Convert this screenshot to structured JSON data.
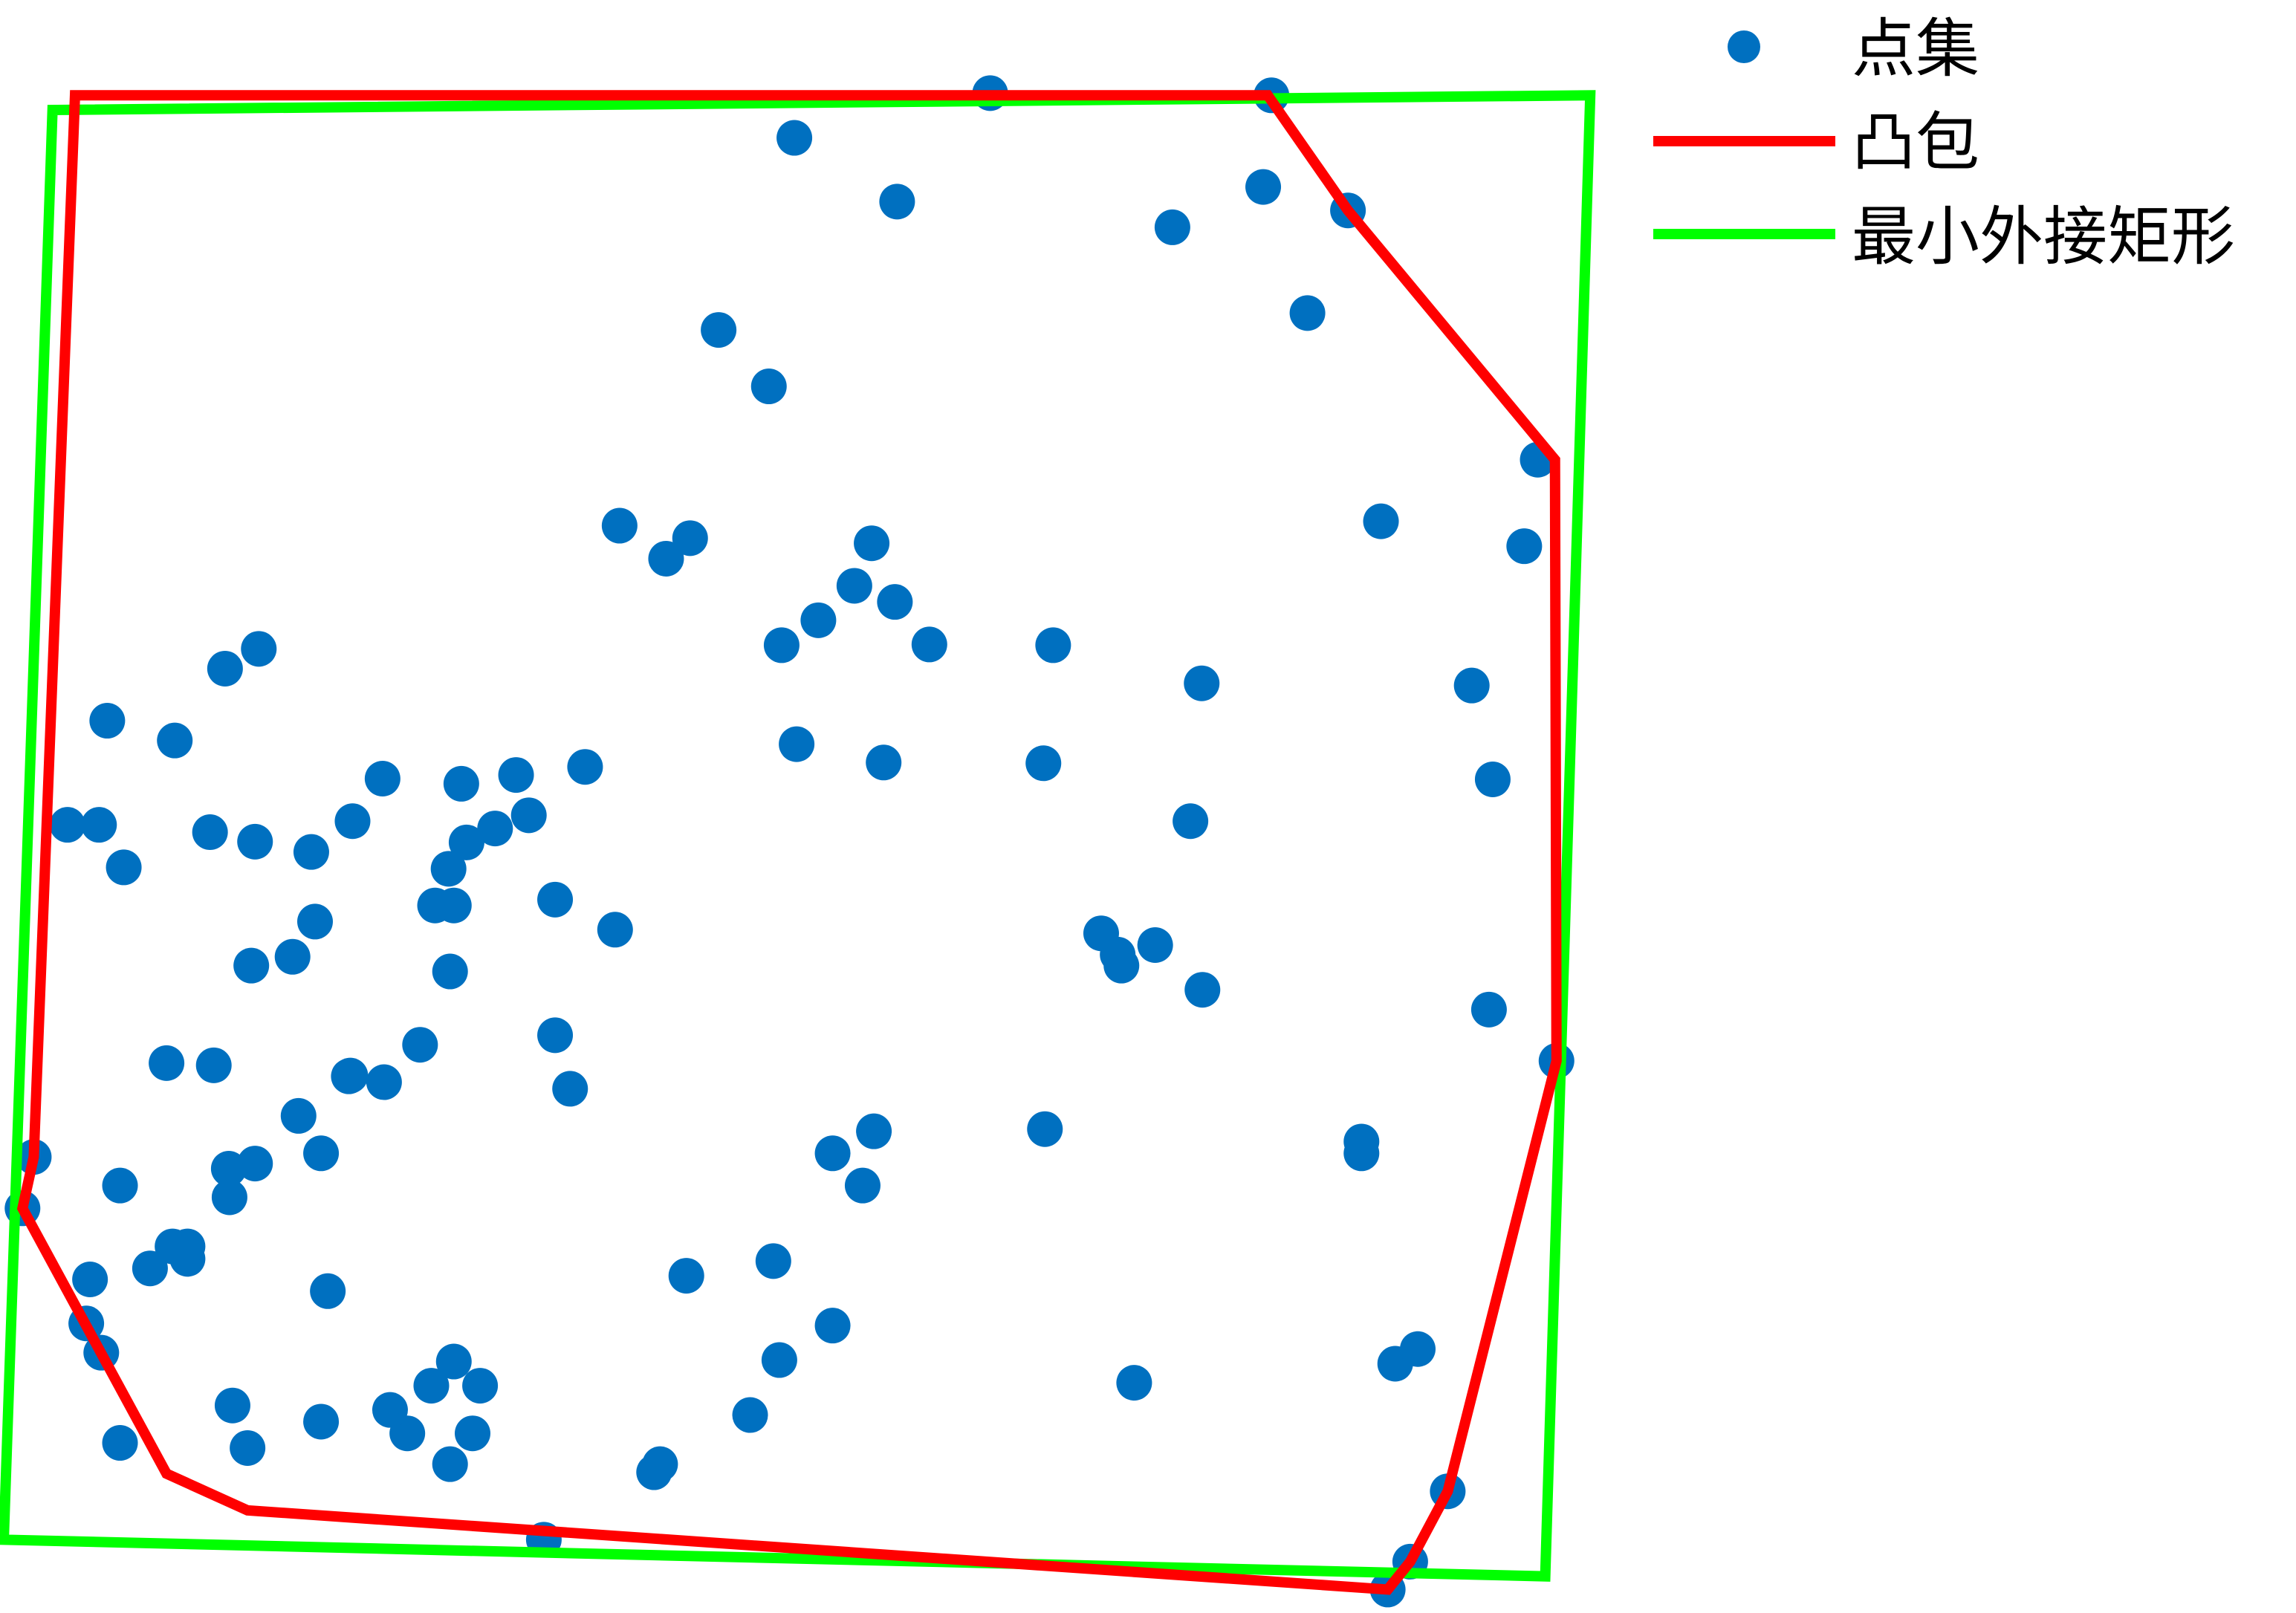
{
  "chart_data": {
    "type": "scatter",
    "title": "",
    "xlabel": "",
    "ylabel": "",
    "xlim": [
      0,
      2100
    ],
    "ylim": [
      0,
      2200
    ],
    "grid": false,
    "legend_position": "top-right",
    "colors": {
      "points": "#0070C0",
      "hull": "#FF0000",
      "rect": "#00FF00"
    },
    "legend": {
      "points_label": "点集",
      "hull_label": "凸包",
      "rect_label": "最小外接矩形"
    },
    "series": [
      {
        "name": "点集",
        "type": "scatter",
        "points": [
          [
            1850,
            2168
          ],
          [
            1880,
            2130
          ],
          [
            1930,
            2034
          ],
          [
            1860,
            1860
          ],
          [
            1890,
            1840
          ],
          [
            1512,
            1886
          ],
          [
            1815,
            1573
          ],
          [
            1815,
            1557
          ],
          [
            2075,
            1447
          ],
          [
            1985,
            1377
          ],
          [
            1990,
            1063
          ],
          [
            1962,
            935
          ],
          [
            2032,
            745
          ],
          [
            2050,
            627
          ],
          [
            1841,
            711
          ],
          [
            1743,
            427
          ],
          [
            1797,
            287
          ],
          [
            1563,
            310
          ],
          [
            1684,
            255
          ],
          [
            1695,
            130
          ],
          [
            1196,
            275
          ],
          [
            1059,
            188
          ],
          [
            1320,
            127
          ],
          [
            1178,
            1040
          ],
          [
            1393,
            1540
          ],
          [
            1391,
            1041
          ],
          [
            1404,
            880
          ],
          [
            1603,
            1350
          ],
          [
            1490,
            1302
          ],
          [
            1468,
            1273
          ],
          [
            1495,
            1317
          ],
          [
            1540,
            1289
          ],
          [
            1587,
            1120
          ],
          [
            1602,
            932
          ],
          [
            1239,
            879
          ],
          [
            1139,
            799
          ],
          [
            1162,
            741
          ],
          [
            1091,
            846
          ],
          [
            1193,
            821
          ],
          [
            1042,
            880
          ],
          [
            888,
            762
          ],
          [
            920,
            734
          ],
          [
            826,
            717
          ],
          [
            1025,
            527
          ],
          [
            1062,
            1015
          ],
          [
            958,
            450
          ],
          [
            1165,
            1543
          ],
          [
            1110,
            1573
          ],
          [
            1150,
            1617
          ],
          [
            1110,
            1808
          ],
          [
            872,
            2008
          ],
          [
            1000,
            1930
          ],
          [
            1039,
            1855
          ],
          [
            1031,
            1720
          ],
          [
            915,
            1740
          ],
          [
            600,
            1997
          ],
          [
            725,
            2100
          ],
          [
            630,
            1955
          ],
          [
            543,
            1955
          ],
          [
            640,
            1890
          ],
          [
            575,
            1890
          ],
          [
            428,
            1939
          ],
          [
            330,
            1975
          ],
          [
            160,
            1968
          ],
          [
            120,
            1745
          ],
          [
            30,
            1648
          ],
          [
            222,
            1450
          ],
          [
            285,
            1453
          ],
          [
            280,
            1135
          ],
          [
            165,
            1183
          ],
          [
            90,
            1125
          ],
          [
            233,
            1010
          ],
          [
            143,
            983
          ],
          [
            132,
            1125
          ],
          [
            300,
            912
          ],
          [
            345,
            885
          ],
          [
            470,
            1120
          ],
          [
            510,
            1062
          ],
          [
            615,
            1069
          ],
          [
            688,
            1057
          ],
          [
            622,
            1149
          ],
          [
            705,
            1112
          ],
          [
            780,
            1046
          ],
          [
            660,
            1130
          ],
          [
            605,
            1235
          ],
          [
            340,
            1148
          ],
          [
            415,
            1162
          ],
          [
            335,
            1317
          ],
          [
            390,
            1305
          ],
          [
            420,
            1257
          ],
          [
            580,
            1235
          ],
          [
            598,
            1185
          ],
          [
            740,
            1227
          ],
          [
            820,
            1268
          ],
          [
            760,
            1485
          ],
          [
            740,
            1412
          ],
          [
            600,
            1325
          ],
          [
            560,
            1425
          ],
          [
            467,
            1467
          ],
          [
            465,
            1468
          ],
          [
            512,
            1476
          ],
          [
            398,
            1522
          ],
          [
            428,
            1573
          ],
          [
            340,
            1587
          ],
          [
            306,
            1633
          ],
          [
            305,
            1594
          ],
          [
            45,
            1578
          ],
          [
            160,
            1617
          ],
          [
            135,
            1845
          ],
          [
            115,
            1805
          ],
          [
            200,
            1730
          ],
          [
            250,
            1717
          ],
          [
            250,
            1700
          ],
          [
            437,
            1761
          ],
          [
            230,
            1700
          ],
          [
            310,
            1917
          ],
          [
            520,
            1923
          ],
          [
            605,
            1857
          ],
          [
            880,
            1997
          ]
        ]
      },
      {
        "name": "凸包",
        "type": "line",
        "closed": true,
        "points": [
          [
            1850,
            2168
          ],
          [
            1880,
            2130
          ],
          [
            1930,
            2034
          ],
          [
            2075,
            1447
          ],
          [
            2073,
            627
          ],
          [
            1797,
            287
          ],
          [
            1690,
            130
          ],
          [
            1680,
            130
          ],
          [
            100,
            130
          ],
          [
            45,
            1578
          ],
          [
            30,
            1648
          ],
          [
            222,
            2010
          ],
          [
            330,
            2060
          ],
          [
            1850,
            2168
          ]
        ]
      },
      {
        "name": "最小外接矩形",
        "type": "line",
        "closed": true,
        "points": [
          [
            2060,
            2150
          ],
          [
            2120,
            130
          ],
          [
            70,
            150
          ],
          [
            5,
            2100
          ]
        ]
      }
    ]
  }
}
